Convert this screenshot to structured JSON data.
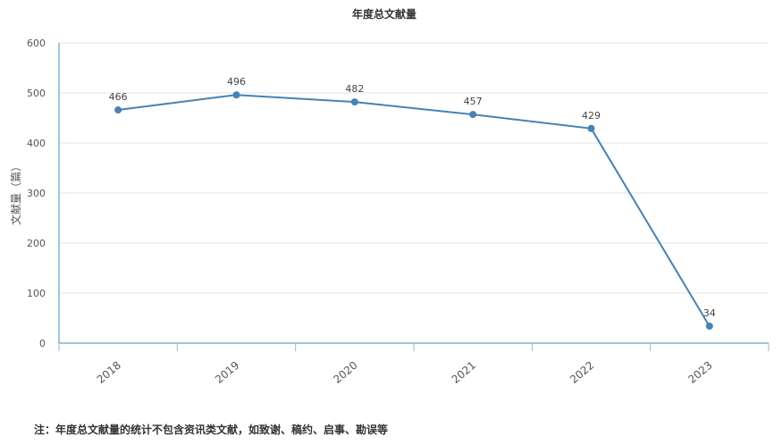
{
  "chart_data": {
    "type": "line",
    "title": "年度总文献量",
    "xlabel": "",
    "ylabel": "文献量（篇）",
    "categories": [
      "2018",
      "2019",
      "2020",
      "2021",
      "2022",
      "2023"
    ],
    "series": [
      {
        "values": [
          466,
          496,
          482,
          457,
          429,
          34
        ],
        "color": "#4682b4"
      }
    ],
    "ylim": [
      0,
      600
    ],
    "yticks": [
      0,
      100,
      200,
      300,
      400,
      500,
      600
    ],
    "grid": true,
    "legend": "none"
  },
  "footnote": "注：年度总文献量的统计不包含资讯类文献，如致谢、稿约、启事、勘误等",
  "colors": {
    "line": "#4682b4",
    "axis": "#3a8fb5",
    "grid": "#e3e3e3"
  }
}
